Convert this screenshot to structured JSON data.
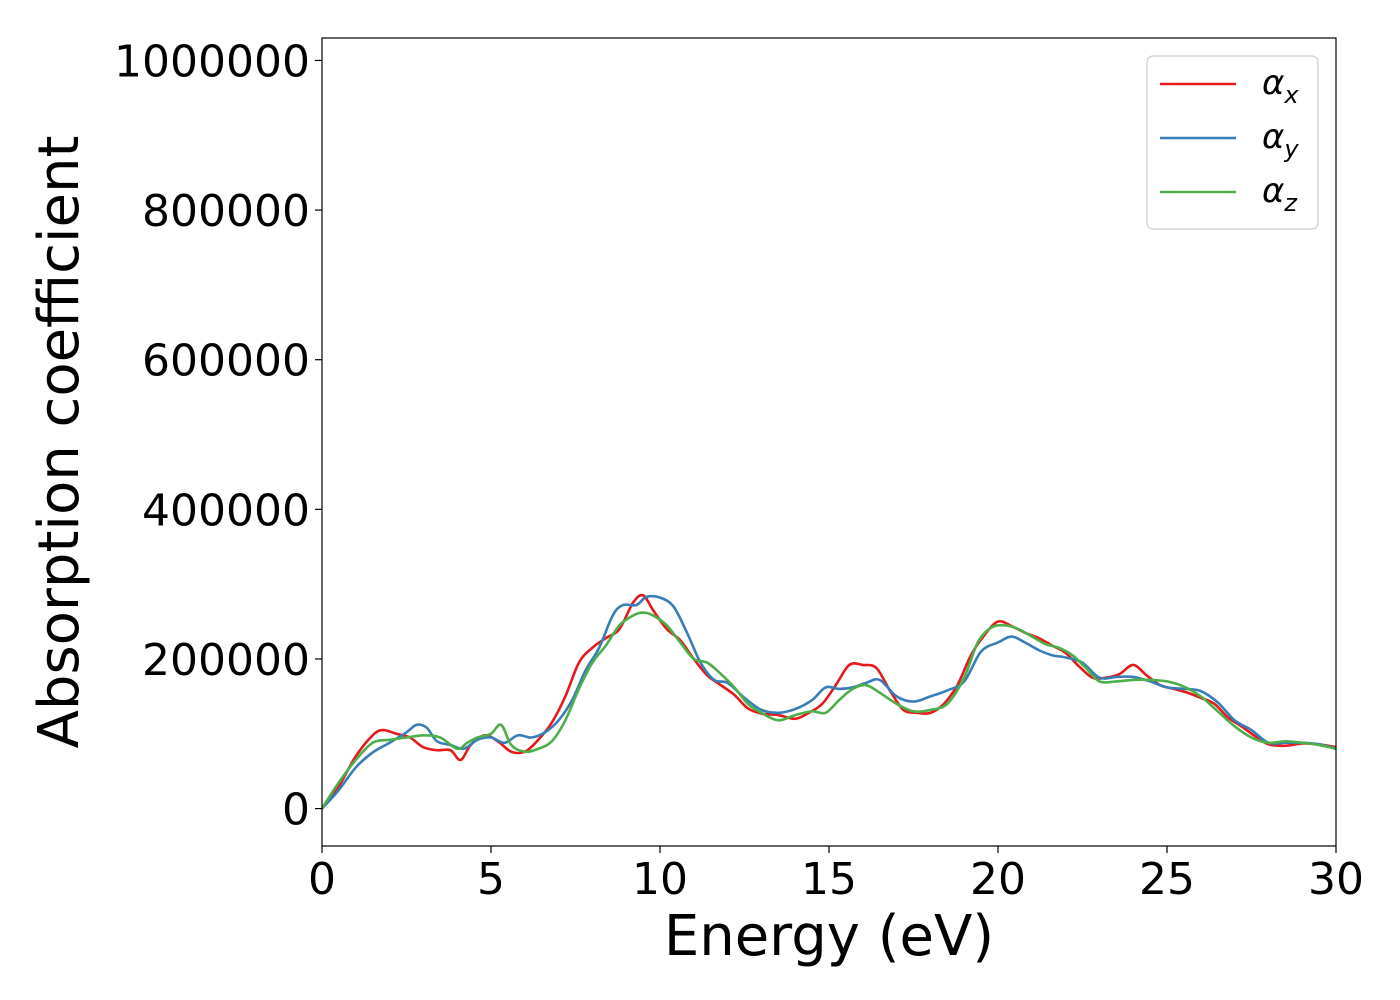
{
  "chart_data": {
    "type": "line",
    "title": "",
    "xlabel": "Energy (eV)",
    "ylabel": "Absorption coefficient",
    "xlim": [
      0,
      30
    ],
    "ylim": [
      -50000,
      1030000
    ],
    "xticks": [
      0,
      5,
      10,
      15,
      20,
      25,
      30
    ],
    "xtick_labels": [
      "0",
      "5",
      "10",
      "15",
      "20",
      "25",
      "30"
    ],
    "yticks": [
      0,
      200000,
      400000,
      600000,
      800000,
      1000000
    ],
    "ytick_labels": [
      "0",
      "200000",
      "400000",
      "600000",
      "800000",
      "1000000"
    ],
    "grid": false,
    "legend_position": "top-right",
    "series": [
      {
        "name": "α_x",
        "label_main": "α",
        "label_sub": "x",
        "color": "#e41a1c",
        "x": [
          0,
          0.5,
          1,
          1.5,
          1.8,
          2.2,
          2.6,
          3,
          3.4,
          3.8,
          4.1,
          4.4,
          4.8,
          5.2,
          5.6,
          6,
          6.4,
          6.8,
          7.2,
          7.6,
          8,
          8.4,
          8.8,
          9.2,
          9.5,
          9.8,
          10.2,
          10.6,
          11,
          11.4,
          11.8,
          12.2,
          12.6,
          13,
          13.5,
          14,
          14.4,
          14.8,
          15.2,
          15.6,
          16,
          16.4,
          16.8,
          17.2,
          17.6,
          18,
          18.4,
          18.8,
          19.2,
          19.6,
          20,
          20.4,
          20.8,
          21.2,
          21.6,
          22,
          22.4,
          22.8,
          23.2,
          23.6,
          24,
          24.4,
          24.8,
          25.2,
          25.6,
          26,
          26.4,
          26.8,
          27.2,
          27.6,
          28,
          28.5,
          29,
          29.5,
          30
        ],
        "values": [
          0,
          30000,
          70000,
          98000,
          105000,
          100000,
          95000,
          82000,
          78000,
          78000,
          65000,
          85000,
          98000,
          90000,
          76000,
          76000,
          92000,
          115000,
          150000,
          195000,
          215000,
          228000,
          240000,
          275000,
          285000,
          265000,
          240000,
          225000,
          200000,
          178000,
          165000,
          152000,
          134000,
          127000,
          125000,
          120000,
          128000,
          140000,
          165000,
          192000,
          192000,
          188000,
          158000,
          132000,
          128000,
          128000,
          140000,
          165000,
          205000,
          232000,
          250000,
          244000,
          235000,
          228000,
          218000,
          208000,
          190000,
          175000,
          175000,
          180000,
          192000,
          178000,
          165000,
          160000,
          155000,
          148000,
          140000,
          122000,
          110000,
          97000,
          86000,
          84000,
          87000,
          86000,
          82000
        ]
      },
      {
        "name": "α_y",
        "label_main": "α",
        "label_sub": "y",
        "color": "#377eb8",
        "x": [
          0,
          0.5,
          1,
          1.5,
          2,
          2.5,
          2.8,
          3.1,
          3.4,
          3.8,
          4.2,
          4.6,
          5,
          5.4,
          5.8,
          6.2,
          6.6,
          7,
          7.4,
          7.8,
          8.2,
          8.6,
          8.9,
          9.3,
          9.6,
          10,
          10.4,
          10.8,
          11.2,
          11.6,
          12,
          12.5,
          13,
          13.5,
          14,
          14.5,
          14.9,
          15.3,
          15.7,
          16.1,
          16.5,
          17,
          17.5,
          18,
          18.5,
          19,
          19.5,
          20,
          20.4,
          20.8,
          21.2,
          21.6,
          22,
          22.5,
          23,
          23.5,
          24,
          24.5,
          25,
          25.5,
          26,
          26.5,
          27,
          27.5,
          28,
          28.5,
          29,
          29.5,
          30
        ],
        "values": [
          0,
          25000,
          55000,
          75000,
          88000,
          102000,
          112000,
          108000,
          90000,
          85000,
          80000,
          92000,
          95000,
          88000,
          98000,
          95000,
          102000,
          118000,
          145000,
          185000,
          215000,
          258000,
          272000,
          272000,
          283000,
          282000,
          270000,
          235000,
          195000,
          172000,
          168000,
          148000,
          132000,
          128000,
          133000,
          145000,
          162000,
          160000,
          162000,
          168000,
          172000,
          150000,
          143000,
          150000,
          158000,
          170000,
          210000,
          222000,
          230000,
          222000,
          212000,
          205000,
          202000,
          195000,
          175000,
          176000,
          176000,
          170000,
          162000,
          160000,
          157000,
          142000,
          118000,
          105000,
          88000,
          88000,
          88000,
          86000,
          80000
        ]
      },
      {
        "name": "α_z",
        "label_main": "α",
        "label_sub": "z",
        "color": "#4daf4a",
        "x": [
          0,
          0.5,
          1,
          1.5,
          2,
          2.5,
          3,
          3.5,
          4,
          4.3,
          4.6,
          5,
          5.3,
          5.6,
          6,
          6.4,
          6.8,
          7.2,
          7.6,
          8,
          8.4,
          8.8,
          9.2,
          9.5,
          9.8,
          10.2,
          10.6,
          11,
          11.4,
          11.8,
          12.2,
          12.6,
          13,
          13.5,
          14,
          14.5,
          14.9,
          15.3,
          15.7,
          16.1,
          16.5,
          17,
          17.5,
          18,
          18.5,
          19,
          19.4,
          19.8,
          20.2,
          20.6,
          21,
          21.4,
          21.8,
          22.2,
          22.6,
          23,
          23.5,
          24,
          24.5,
          25,
          25.5,
          26,
          26.5,
          27,
          27.5,
          28,
          28.5,
          29,
          29.5,
          30
        ],
        "values": [
          0,
          35000,
          65000,
          88000,
          92000,
          95000,
          98000,
          95000,
          80000,
          88000,
          95000,
          100000,
          112000,
          85000,
          76000,
          80000,
          90000,
          118000,
          160000,
          195000,
          218000,
          245000,
          258000,
          262000,
          258000,
          245000,
          222000,
          200000,
          195000,
          180000,
          162000,
          140000,
          128000,
          118000,
          125000,
          130000,
          128000,
          145000,
          160000,
          165000,
          155000,
          140000,
          130000,
          132000,
          140000,
          175000,
          222000,
          242000,
          245000,
          240000,
          230000,
          220000,
          215000,
          205000,
          188000,
          170000,
          170000,
          172000,
          172000,
          170000,
          163000,
          150000,
          130000,
          110000,
          95000,
          88000,
          90000,
          88000,
          85000,
          80000
        ]
      }
    ]
  }
}
